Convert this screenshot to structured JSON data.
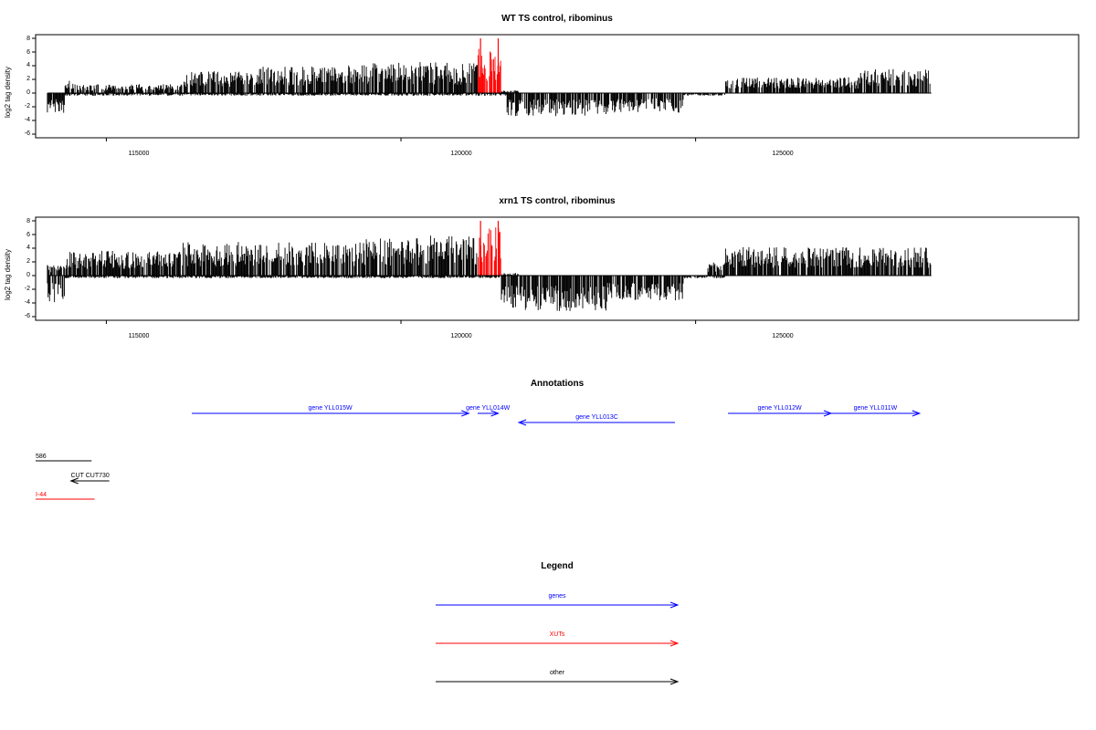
{
  "chart_data": [
    {
      "type": "bar",
      "title": "WT TS control, ribominus",
      "ylabel": "log2 tag density",
      "xlim": [
        113800,
        131500
      ],
      "ylim": [
        -6,
        8
      ],
      "x_ticks": [
        115000,
        120000,
        125000
      ],
      "x_tick_labels": [
        "115000",
        "120000",
        "125000"
      ],
      "y_ticks": [
        -6,
        -4,
        -2,
        0,
        2,
        4,
        6,
        8
      ],
      "y_tick_labels": [
        "-6",
        "-4",
        "-2",
        "0",
        "2",
        "4",
        "6",
        "8"
      ],
      "highlight_color": "#ff0000",
      "bar_color": "#000000",
      "profile": {
        "plus": [
          [
            114000,
            114300,
            0
          ],
          [
            114300,
            114500,
            1.4
          ],
          [
            114500,
            116300,
            1.0
          ],
          [
            116300,
            117600,
            2.5
          ],
          [
            117600,
            118600,
            3.0
          ],
          [
            118600,
            119300,
            3.2
          ],
          [
            119300,
            120000,
            3.4
          ],
          [
            120000,
            121300,
            3.5
          ],
          [
            121300,
            121700,
            5.0
          ],
          [
            121700,
            122000,
            0.3
          ],
          [
            122000,
            125500,
            0
          ],
          [
            125500,
            127800,
            1.8
          ],
          [
            127800,
            129000,
            2.7
          ]
        ],
        "minus": [
          [
            114000,
            114300,
            2.5
          ],
          [
            114300,
            121800,
            0.3
          ],
          [
            121800,
            123500,
            2.6
          ],
          [
            123500,
            124800,
            2.2
          ],
          [
            124800,
            125500,
            0.3
          ],
          [
            125500,
            129000,
            0
          ]
        ]
      },
      "highlights": [
        {
          "x": 121350,
          "value": 8.0
        },
        {
          "x": 121650,
          "value": 8.0
        }
      ]
    },
    {
      "type": "bar",
      "title": "xrn1 TS control, ribominus",
      "ylabel": "log2 tag density",
      "xlim": [
        113800,
        131500
      ],
      "ylim": [
        -6,
        8
      ],
      "x_ticks": [
        115000,
        120000,
        125000
      ],
      "x_tick_labels": [
        "115000",
        "120000",
        "125000"
      ],
      "y_ticks": [
        -6,
        -4,
        -2,
        0,
        2,
        4,
        6,
        8
      ],
      "y_tick_labels": [
        "-6",
        "-4",
        "-2",
        "0",
        "2",
        "4",
        "6",
        "8"
      ],
      "highlight_color": "#ff0000",
      "bar_color": "#000000",
      "profile": {
        "plus": [
          [
            114000,
            114300,
            1.2
          ],
          [
            114300,
            116300,
            2.8
          ],
          [
            116300,
            119300,
            3.8
          ],
          [
            119300,
            120500,
            4.2
          ],
          [
            120500,
            121300,
            4.5
          ],
          [
            121300,
            121700,
            5.5
          ],
          [
            121700,
            122000,
            0.3
          ],
          [
            122000,
            125200,
            0
          ],
          [
            125200,
            125500,
            1.5
          ],
          [
            125500,
            129000,
            3.2
          ]
        ],
        "minus": [
          [
            114000,
            114300,
            3.0
          ],
          [
            114300,
            121700,
            0.3
          ],
          [
            121700,
            123500,
            4.0
          ],
          [
            123500,
            124800,
            2.8
          ],
          [
            124800,
            125500,
            0.3
          ],
          [
            125500,
            129000,
            0
          ]
        ]
      },
      "highlights": [
        {
          "x": 121350,
          "value": 8.0
        },
        {
          "x": 121650,
          "value": 8.0
        }
      ]
    }
  ],
  "annotations": {
    "title": "Annotations",
    "genes": [
      {
        "label": "gene YLL015W",
        "start": 116450,
        "end": 121150,
        "row": 0,
        "color": "#0000ff"
      },
      {
        "label": "gene YLL014W",
        "start": 121300,
        "end": 121650,
        "row": 0,
        "color": "#0000ff"
      },
      {
        "label": "gene YLL013C",
        "start": 124650,
        "end": 122000,
        "row": 1,
        "color": "#0000ff"
      },
      {
        "label": "gene YLL012W",
        "start": 125550,
        "end": 127300,
        "row": 0,
        "color": "#0000ff"
      },
      {
        "label": "gene YLL011W",
        "start": 127300,
        "end": 128800,
        "row": 0,
        "color": "#0000ff"
      }
    ],
    "other": [
      {
        "label": "586",
        "start": 113800,
        "end": 114750,
        "color": "#000000",
        "arrow": false
      },
      {
        "label": "CUT CUT730",
        "start": 115050,
        "end": 114400,
        "color": "#000000",
        "arrow": true
      },
      {
        "label": "I-44",
        "start": 113800,
        "end": 114800,
        "color": "#ff0000",
        "arrow": false
      }
    ]
  },
  "legend": {
    "title": "Legend",
    "items": [
      {
        "label": "genes",
        "color": "#0000ff"
      },
      {
        "label": "XUTs",
        "color": "#ff0000"
      },
      {
        "label": "other",
        "color": "#000000"
      }
    ]
  }
}
